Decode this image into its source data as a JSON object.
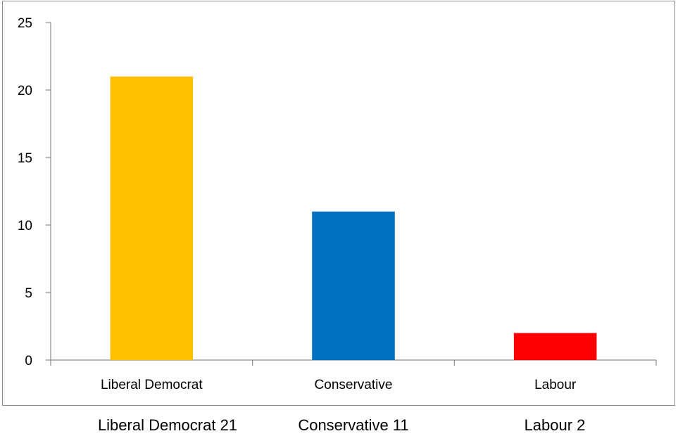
{
  "chart_data": {
    "type": "bar",
    "title": "",
    "xlabel": "",
    "ylabel": "",
    "categories": [
      "Liberal Democrat",
      "Conservative",
      "Labour"
    ],
    "values": [
      21,
      11,
      2
    ],
    "colors": [
      "#FFC000",
      "#0070C0",
      "#FF0000"
    ],
    "ylim": [
      0,
      25
    ],
    "yticks": [
      "0",
      "5",
      "10",
      "15",
      "20",
      "25"
    ],
    "grid": false,
    "legend": "none"
  },
  "captions": [
    "Liberal Democrat 21",
    "Conservative 11",
    "Labour 2"
  ]
}
